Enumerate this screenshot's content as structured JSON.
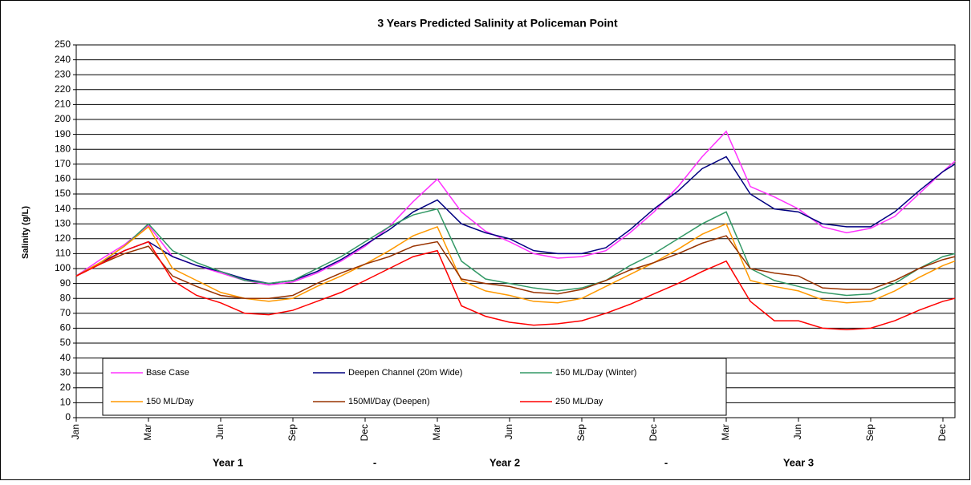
{
  "chart_data": {
    "type": "line",
    "title": "3 Years Predicted Salinity at Policeman Point",
    "y_label": "Salinity (g/L)",
    "x": [
      0,
      1,
      2,
      3,
      4,
      5,
      6,
      7,
      8,
      9,
      10,
      11,
      12,
      13,
      14,
      15,
      16,
      17,
      18,
      19,
      20,
      21,
      22,
      23,
      24,
      25,
      26,
      27,
      28,
      29,
      30,
      31,
      32,
      33,
      34,
      35,
      36,
      36.5
    ],
    "xlim": [
      0,
      36.5
    ],
    "xticks": [
      {
        "value": 0,
        "label": "Jan"
      },
      {
        "value": 3,
        "label": "Mar"
      },
      {
        "value": 6,
        "label": "Jun"
      },
      {
        "value": 9,
        "label": "Sep"
      },
      {
        "value": 12,
        "label": "Dec"
      },
      {
        "value": 15,
        "label": "Mar"
      },
      {
        "value": 18,
        "label": "Jun"
      },
      {
        "value": 21,
        "label": "Sep"
      },
      {
        "value": 24,
        "label": "Dec"
      },
      {
        "value": 27,
        "label": "Mar"
      },
      {
        "value": 30,
        "label": "Jun"
      },
      {
        "value": 33,
        "label": "Sep"
      },
      {
        "value": 36,
        "label": "Dec"
      }
    ],
    "x_group_labels": [
      {
        "label": "Year 1",
        "x": 6.3
      },
      {
        "label": "-",
        "x": 12.4
      },
      {
        "label": "Year 2",
        "x": 17.8
      },
      {
        "label": "-",
        "x": 24.5
      },
      {
        "label": "Year 3",
        "x": 30.0
      }
    ],
    "ylim": [
      0,
      250
    ],
    "yticks": [
      0,
      10,
      20,
      30,
      40,
      50,
      60,
      70,
      80,
      90,
      100,
      110,
      120,
      130,
      140,
      150,
      160,
      170,
      180,
      190,
      200,
      210,
      220,
      230,
      240,
      250
    ],
    "grid": true,
    "legend": "bottom-left",
    "series": [
      {
        "name": "Base Case",
        "color": "#ff33ff",
        "values": [
          95,
          106,
          116,
          129,
          108,
          102,
          97,
          92,
          89,
          91,
          97,
          105,
          115,
          128,
          145,
          160,
          138,
          125,
          118,
          110,
          107,
          108,
          112,
          124,
          138,
          155,
          175,
          192,
          155,
          148,
          140,
          128,
          124,
          127,
          135,
          150,
          165,
          172
        ]
      },
      {
        "name": "Deepen Channel (20m Wide)",
        "color": "#000080",
        "values": [
          95,
          104,
          112,
          118,
          108,
          102,
          98,
          93,
          90,
          92,
          98,
          106,
          116,
          126,
          138,
          146,
          130,
          124,
          120,
          112,
          110,
          110,
          114,
          126,
          140,
          152,
          167,
          175,
          150,
          140,
          138,
          130,
          128,
          128,
          138,
          152,
          165,
          170
        ]
      },
      {
        "name": "150 ML/Day (Winter)",
        "color": "#339966",
        "values": [
          95,
          104,
          115,
          130,
          112,
          104,
          98,
          92,
          90,
          92,
          100,
          108,
          118,
          128,
          136,
          140,
          105,
          93,
          90,
          87,
          85,
          87,
          92,
          102,
          110,
          120,
          130,
          138,
          100,
          92,
          88,
          84,
          82,
          83,
          90,
          100,
          108,
          110
        ]
      },
      {
        "name": "150 ML/Day",
        "color": "#ff9900",
        "values": [
          95,
          104,
          115,
          128,
          100,
          92,
          84,
          80,
          78,
          80,
          88,
          95,
          103,
          112,
          122,
          128,
          92,
          85,
          82,
          78,
          77,
          80,
          88,
          96,
          104,
          113,
          123,
          130,
          92,
          88,
          85,
          79,
          77,
          78,
          85,
          94,
          102,
          105
        ]
      },
      {
        "name": "150Ml/Day (Deepen)",
        "color": "#993300",
        "values": [
          95,
          103,
          110,
          115,
          95,
          88,
          82,
          80,
          80,
          82,
          90,
          97,
          103,
          108,
          115,
          118,
          93,
          90,
          88,
          84,
          83,
          86,
          92,
          99,
          104,
          110,
          117,
          122,
          100,
          97,
          95,
          87,
          86,
          86,
          92,
          100,
          106,
          108
        ]
      },
      {
        "name": "250 ML/Day",
        "color": "#ff0000",
        "values": [
          95,
          103,
          112,
          118,
          92,
          82,
          77,
          70,
          69,
          72,
          78,
          84,
          92,
          100,
          108,
          112,
          75,
          68,
          64,
          62,
          63,
          65,
          70,
          76,
          83,
          90,
          98,
          105,
          78,
          65,
          65,
          60,
          59,
          60,
          65,
          72,
          78,
          80
        ]
      }
    ]
  }
}
